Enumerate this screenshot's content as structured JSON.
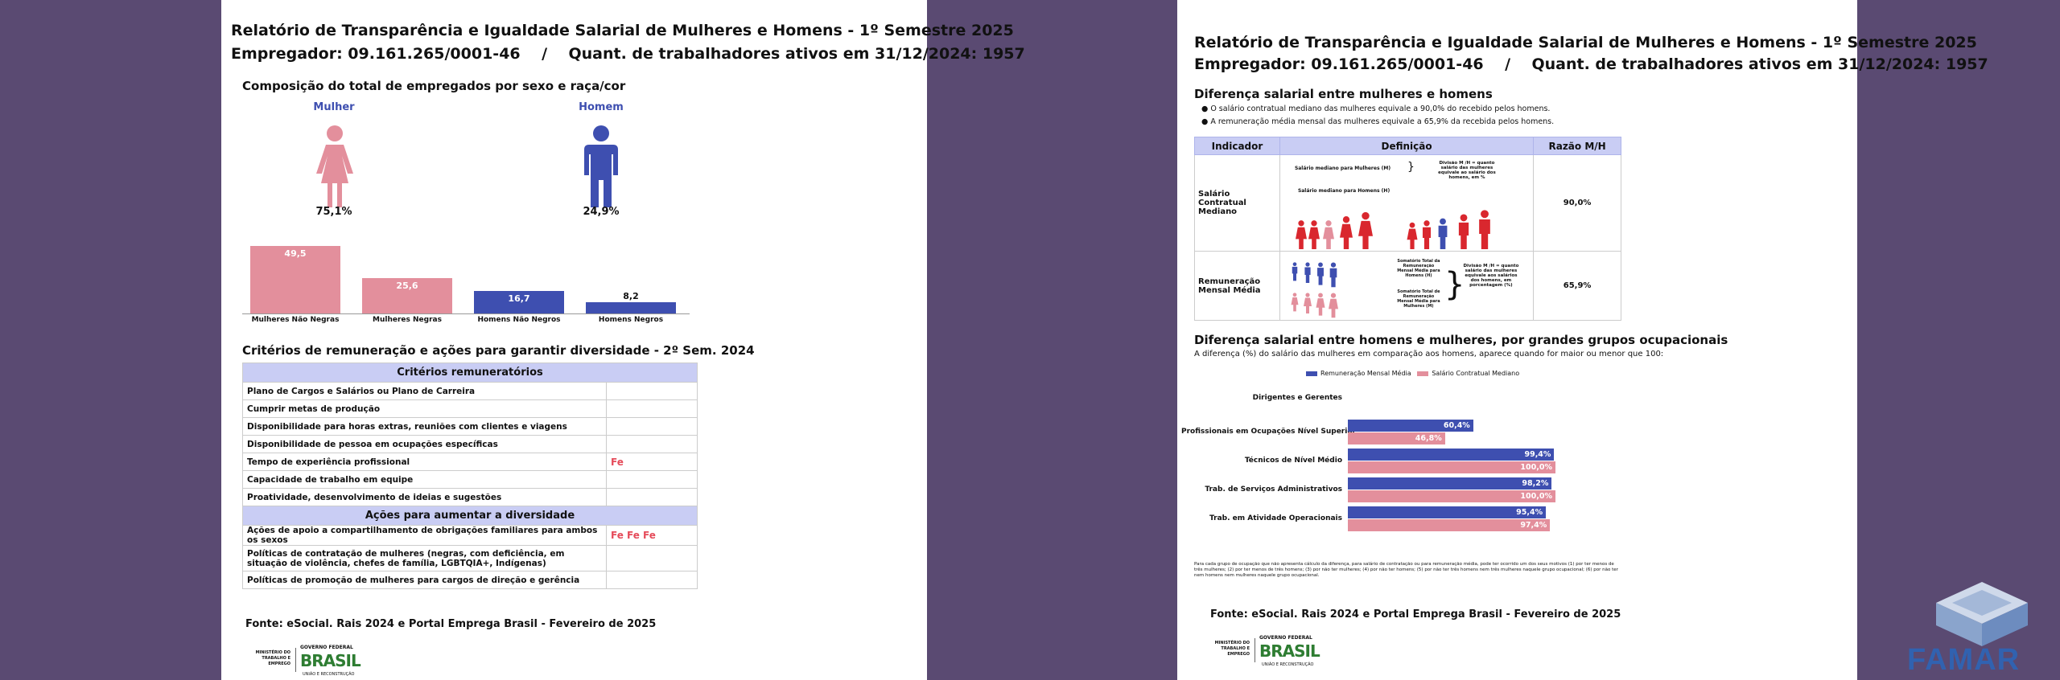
{
  "page1": {
    "title": "Relatório de Transparência e Igualdade Salarial de Mulheres e Homens - 1º Semestre 2025",
    "employer_line": "Empregador: 09.161.265/0001-46    /    Quant. de trabalhadores ativos em 31/12/2024: 1957",
    "composition_title": "Composição do total de empregados por sexo e raça/cor",
    "female_label": "Mulher",
    "female_pct": "75,1%",
    "male_label": "Homem",
    "male_pct": "24,9%",
    "colors": {
      "female": "#e38f9c",
      "male": "#3e4fb0",
      "female_dark": "#e8828f"
    },
    "criteria_title": "Critérios de remuneração e ações para garantir diversidade - 2º Sem. 2024",
    "criteria_header": "Critérios remuneratórios",
    "criteria": [
      {
        "label": "Plano de Cargos e Salários ou Plano de Carreira",
        "mark": ""
      },
      {
        "label": "Cumprir metas de produção",
        "mark": ""
      },
      {
        "label": "Disponibilidade para horas extras, reuniões com clientes e viagens",
        "mark": ""
      },
      {
        "label": "Disponibilidade de pessoa em ocupações específicas",
        "mark": ""
      },
      {
        "label": "Tempo de experiência profissional",
        "mark": "Fe"
      },
      {
        "label": "Capacidade de trabalho em equipe",
        "mark": ""
      },
      {
        "label": "Proatividade, desenvolvimento de ideias e sugestões",
        "mark": ""
      }
    ],
    "actions_header": "Ações para aumentar a diversidade",
    "actions": [
      {
        "label": "Ações de apoio a compartilhamento de obrigações familiares para ambos os sexos",
        "mark": "Fe Fe Fe"
      },
      {
        "label": "Políticas de contratação de mulheres (negras, com deficiência, em situação de violência, chefes de família, LGBTQIA+, Indígenas)",
        "mark": ""
      },
      {
        "label": "Políticas de promoção de mulheres para cargos de direção e gerência",
        "mark": ""
      }
    ],
    "source": "Fonte: eSocial. Rais 2024 e Portal Emprega Brasil - Fevereiro de 2025",
    "ministry": "MINISTÉRIO DO TRABALHO E EMPREGO",
    "gov_label": "GOVERNO FEDERAL",
    "brasil": "BRASIL",
    "gov_sub": "UNIÃO E RECONSTRUÇÃO"
  },
  "chart_data": [
    {
      "type": "bar",
      "categories": [
        "Mulheres Não Negras",
        "Mulheres Negras",
        "Homens Não Negros",
        "Homens Negros"
      ],
      "values": [
        49.5,
        25.6,
        16.7,
        8.2
      ],
      "value_labels": [
        "49,5",
        "25,6",
        "16,7",
        "8,2"
      ],
      "ylim": [
        0,
        50
      ]
    },
    {
      "type": "bar",
      "orientation": "horizontal",
      "categories": [
        "Dirigentes e Gerentes",
        "Profissionais em Ocupações Nível Superior",
        "Técnicos de Nível Médio",
        "Trab. de Serviços Administrativos",
        "Trab. em Atividade Operacionais"
      ],
      "series": [
        {
          "name": "Remuneração Mensal Média",
          "values": [
            null,
            60.4,
            99.4,
            98.2,
            95.4
          ],
          "labels": [
            "",
            "60,4%",
            "99,4%",
            "98,2%",
            "95,4%"
          ]
        },
        {
          "name": "Salário Contratual Mediano",
          "values": [
            null,
            46.8,
            100.0,
            100.0,
            97.4
          ],
          "labels": [
            "",
            "46,8%",
            "100,0%",
            "100,0%",
            "97,4%"
          ]
        }
      ],
      "xlim": [
        0,
        100
      ]
    }
  ],
  "page2": {
    "title": "Relatório de Transparência e Igualdade Salarial de Mulheres e Homens - 1º Semestre 2025",
    "employer_line": "Empregador: 09.161.265/0001-46    /    Quant. de trabalhadores ativos em 31/12/2024: 1957",
    "diff_title": "Diferença salarial entre mulheres e homens",
    "bullet1": "O salário contratual mediano das mulheres equivale a 90,0% do recebido pelos homens.",
    "bullet2": "A remuneração média mensal das mulheres equivale a 65,9% da recebida pelos homens.",
    "table_headers": [
      "Indicador",
      "Definição",
      "Razão M/H"
    ],
    "row1_label": "Salário Contratual Mediano",
    "row1_def_a": "Salário mediano para Mulheres (M)",
    "row1_def_b": "Salário mediano para Homens (H)",
    "row1_def_c": "Divisão M /H = quanto salário das mulheres equivale ao salário dos homens, em %",
    "row1_ratio": "90,0%",
    "row2_label": "Remuneração Mensal Média",
    "row2_def_a": "Somatório Total da Remuneração Mensal Média para Homens (H)",
    "row2_def_b": "Somatório Total de Remuneração Mensal Média para Mulheres (M)",
    "row2_def_c": "Divisão M /H = quanto salário das mulheres equivale aos salários dos homens, em porcentagem (%)",
    "row2_ratio": "65,9%",
    "occ_title": "Diferença salarial entre homens e mulheres, por grandes grupos ocupacionais",
    "occ_sub": "A diferença (%) do salário das mulheres em comparação aos homens, aparece quando for maior ou menor que 100:",
    "footnote": "Para cada grupo de ocupação que não apresenta cálculo da diferença, para salário de contratação ou para remuneração média, pode ter ocorrido um dos seus motivos (1) por ter menos de três mulheres; (2) por ter menos de três homens; (3) por não ter mulheres; (4) por não ter homens; (5) por não ter três homens nem três mulheres naquele grupo ocupacional; (6) por não ter nem homens nem mulheres naquele grupo ocupacional.",
    "source": "Fonte: eSocial. Rais 2024 e Portal Emprega Brasil - Fevereiro de 2025",
    "ministry": "MINISTÉRIO DO TRABALHO E EMPREGO",
    "gov_label": "GOVERNO FEDERAL",
    "brasil": "BRASIL",
    "gov_sub": "UNIÃO E RECONSTRUÇÃO"
  },
  "famar_logo_text": "FAMAR"
}
